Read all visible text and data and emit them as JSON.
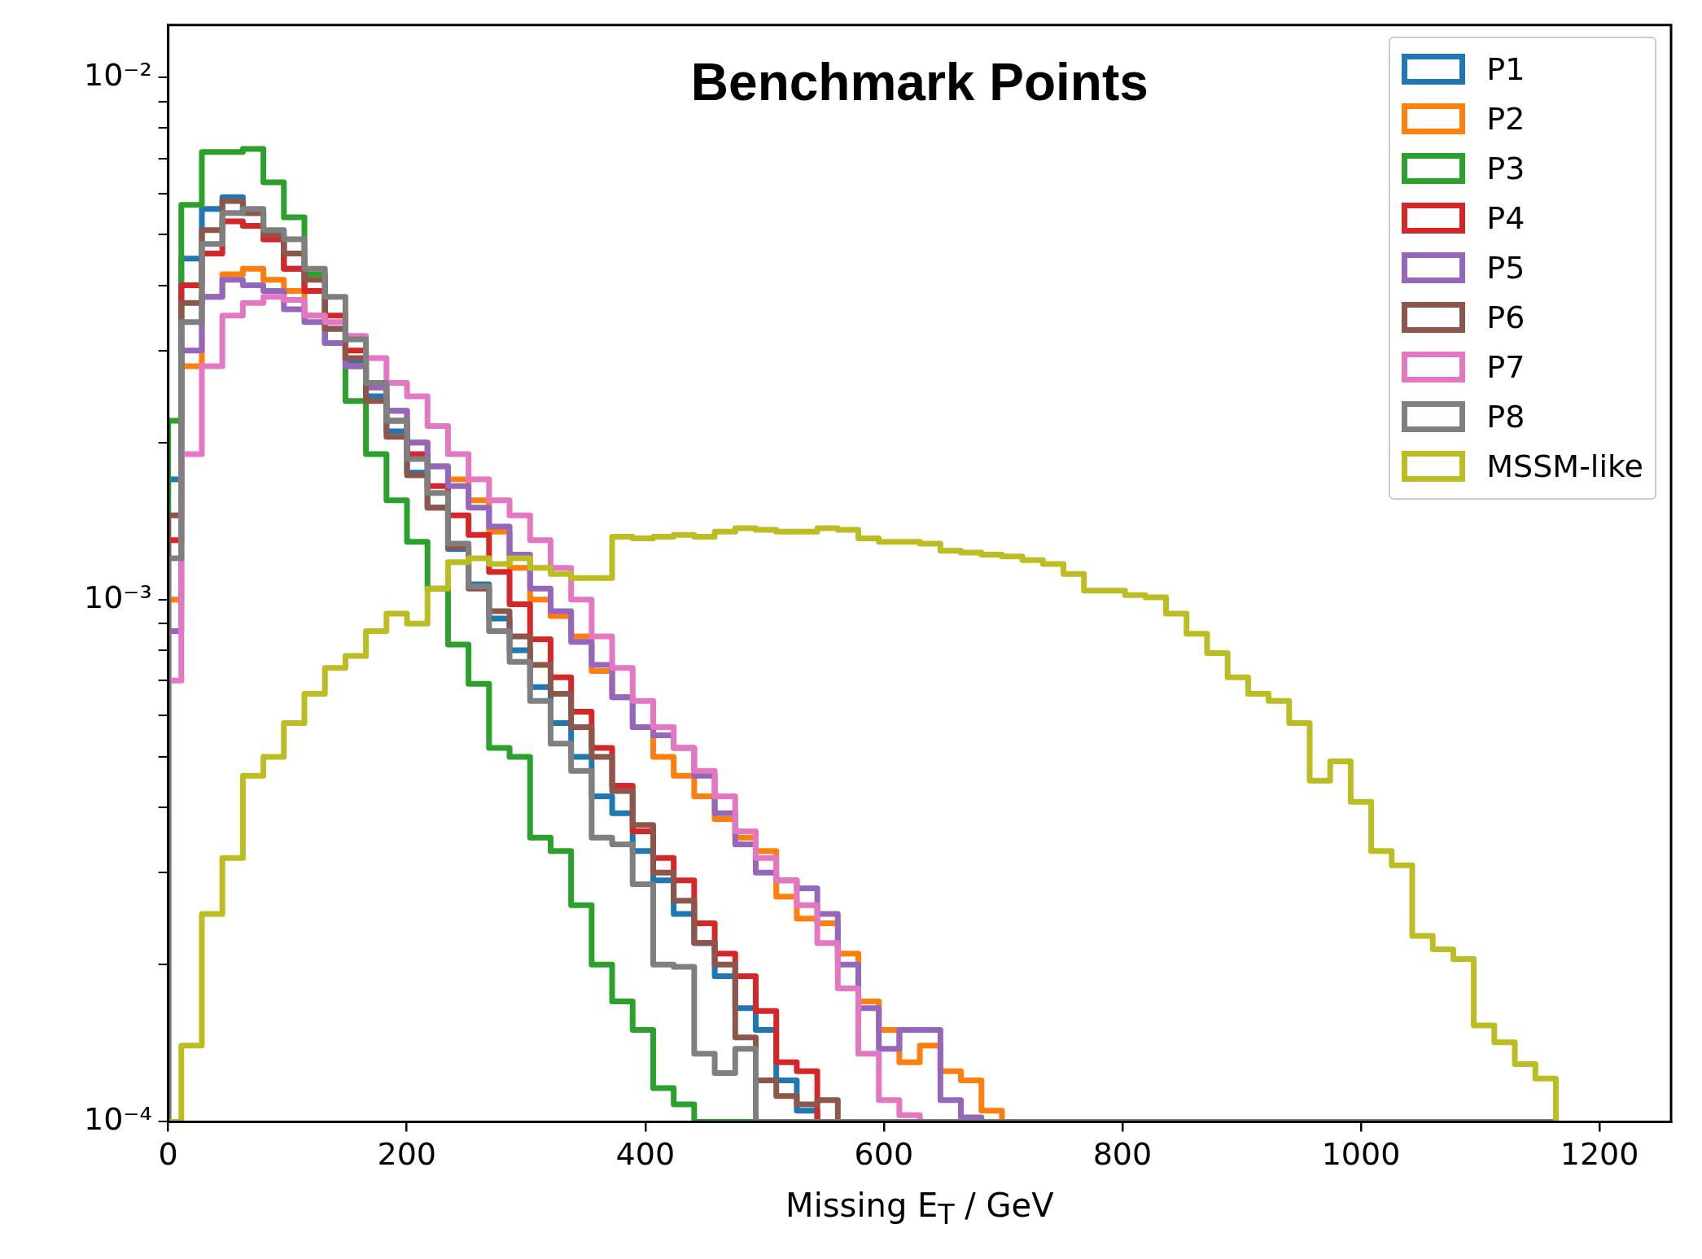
{
  "chart_data": {
    "type": "histogram",
    "title": "Benchmark Points",
    "xlabel": "Missing E$_{T}$ / GeV",
    "bins": [
      0,
      11,
      28.2,
      45.4,
      62.6,
      79.8,
      97,
      114.2,
      131.4,
      148.6,
      165.8,
      183,
      200.2,
      217.4,
      234.6,
      251.8,
      269,
      286.2,
      303.4,
      320.6,
      337.8,
      355,
      372.2,
      389.4,
      406.6,
      423.8,
      441,
      458.2,
      475.4,
      492.6,
      509.8,
      527,
      544.2,
      561.4,
      578.6,
      595.8,
      613,
      630.2,
      647.4,
      664.6,
      681.8,
      699,
      716.2,
      733.4,
      750.6,
      767.8,
      785,
      802.2,
      819.4,
      836.6,
      853.8,
      871,
      888.2,
      905.4,
      922.6,
      939.8,
      957,
      974.2,
      991.4,
      1008.6,
      1025.8,
      1043,
      1060.2,
      1077.4,
      1094.6,
      1111.8,
      1129,
      1146.2,
      1163.4
    ],
    "series": [
      {
        "name": "P1",
        "color": "#1f77b4",
        "values": [
          0.0017,
          0.0045,
          0.0056,
          0.0059,
          0.0055,
          0.0049,
          0.0043,
          0.0039,
          0.0033,
          0.00285,
          0.00245,
          0.0021,
          0.00175,
          0.0015,
          0.00125,
          0.00107,
          0.00092,
          0.0008,
          0.00068,
          0.00058,
          0.0005,
          0.00042,
          0.00039,
          0.00033,
          0.00029,
          0.00025,
          0.00022,
          0.00019,
          0.000165,
          0.00015,
          0.00012,
          0.000105,
          null,
          null,
          null,
          null,
          null,
          null,
          null,
          null,
          null,
          null,
          null,
          null,
          null,
          null,
          null,
          null,
          null,
          null,
          null,
          null,
          null,
          null,
          null,
          null,
          null,
          null,
          null,
          null,
          null,
          null,
          null,
          null,
          null,
          null,
          null,
          null
        ]
      },
      {
        "name": "P2",
        "color": "#ff7f0e",
        "values": [
          0.001,
          0.0028,
          0.0038,
          0.0042,
          0.0043,
          0.0041,
          0.0039,
          0.0035,
          0.0031,
          0.0028,
          0.00255,
          0.0023,
          0.002,
          0.0018,
          0.0017,
          0.00155,
          0.00135,
          0.00115,
          0.001,
          0.00093,
          0.00085,
          0.00073,
          0.00065,
          0.00057,
          0.0005,
          0.00046,
          0.00042,
          0.00038,
          0.00035,
          0.00033,
          0.00027,
          0.000245,
          0.00024,
          0.00021,
          0.00017,
          0.00015,
          0.00013,
          0.00014,
          0.000125,
          0.00012,
          0.000105,
          null,
          null,
          null,
          null,
          null,
          null,
          null,
          null,
          null,
          null,
          null,
          null,
          null,
          null,
          null,
          null,
          null,
          null,
          null,
          null,
          null,
          null,
          null,
          null,
          null,
          null,
          null
        ]
      },
      {
        "name": "P3",
        "color": "#2ca02c",
        "values": [
          0.0022,
          0.0057,
          0.0072,
          0.0072,
          0.0073,
          0.0063,
          0.0054,
          0.0042,
          0.0031,
          0.0024,
          0.0019,
          0.00155,
          0.00129,
          0.00105,
          0.00082,
          0.00069,
          0.00052,
          0.0005,
          0.00035,
          0.00033,
          0.00026,
          0.0002,
          0.00017,
          0.00015,
          0.000116,
          0.000108,
          null,
          null,
          null,
          null,
          null,
          null,
          null,
          null,
          null,
          null,
          null,
          null,
          null,
          null,
          null,
          null,
          null,
          null,
          null,
          null,
          null,
          null,
          null,
          null,
          null,
          null,
          null,
          null,
          null,
          null,
          null,
          null,
          null,
          null,
          null,
          null,
          null,
          null,
          null,
          null,
          null,
          null
        ]
      },
      {
        "name": "P4",
        "color": "#d62728",
        "values": [
          0.0013,
          0.004,
          0.0046,
          0.0053,
          0.0052,
          0.0049,
          0.0043,
          0.0039,
          0.0035,
          0.003,
          0.0026,
          0.0022,
          0.0019,
          0.00165,
          0.00145,
          0.00133,
          0.00113,
          0.00098,
          0.00084,
          0.00071,
          0.00061,
          0.00052,
          0.00044,
          0.00036,
          0.00032,
          0.00029,
          0.00024,
          0.00021,
          0.00019,
          0.000163,
          0.00013,
          0.000125,
          null,
          null,
          null,
          null,
          null,
          null,
          null,
          null,
          null,
          null,
          null,
          null,
          null,
          null,
          null,
          null,
          null,
          null,
          null,
          null,
          null,
          null,
          null,
          null,
          null,
          null,
          null,
          null,
          null,
          null,
          null,
          null,
          null,
          null,
          null,
          null
        ]
      },
      {
        "name": "P5",
        "color": "#9467bd",
        "values": [
          0.00087,
          0.003,
          0.0038,
          0.0041,
          0.004,
          0.0039,
          0.0036,
          0.0034,
          0.0031,
          0.0028,
          0.00255,
          0.0023,
          0.002,
          0.0018,
          0.00165,
          0.0015,
          0.00138,
          0.00122,
          0.00105,
          0.00095,
          0.00083,
          0.00075,
          0.00065,
          0.00057,
          0.00055,
          0.00052,
          0.00046,
          0.00039,
          0.00034,
          0.0003,
          0.00029,
          0.00028,
          0.00025,
          0.0002,
          0.000165,
          0.000138,
          0.00015,
          0.00015,
          0.00011,
          0.000102,
          null,
          null,
          null,
          null,
          null,
          null,
          null,
          null,
          null,
          null,
          null,
          null,
          null,
          null,
          null,
          null,
          null,
          null,
          null,
          null,
          null,
          null,
          null,
          null,
          null,
          null,
          null,
          null
        ]
      },
      {
        "name": "P6",
        "color": "#8c564b",
        "values": [
          0.00145,
          0.0037,
          0.0051,
          0.0058,
          0.0055,
          0.005,
          0.0046,
          0.0041,
          0.0033,
          0.0029,
          0.0024,
          0.00205,
          0.00173,
          0.0015,
          0.00126,
          0.00105,
          0.00095,
          0.00085,
          0.00075,
          0.00066,
          0.00057,
          0.0005,
          0.00043,
          0.00037,
          0.0003,
          0.000265,
          0.00022,
          0.0002,
          0.000145,
          0.00012,
          0.000112,
          0.000108,
          0.00011,
          null,
          null,
          null,
          null,
          null,
          null,
          null,
          null,
          null,
          null,
          null,
          null,
          null,
          null,
          null,
          null,
          null,
          null,
          null,
          null,
          null,
          null,
          null,
          null,
          null,
          null,
          null,
          null,
          null,
          null,
          null,
          null,
          null,
          null,
          null
        ]
      },
      {
        "name": "P7",
        "color": "#e377c2",
        "values": [
          0.0007,
          0.0019,
          0.0028,
          0.0035,
          0.0037,
          0.0038,
          0.00375,
          0.0035,
          0.0034,
          0.0032,
          0.0029,
          0.0026,
          0.00245,
          0.00215,
          0.0019,
          0.0017,
          0.00155,
          0.00145,
          0.0013,
          0.00115,
          0.001,
          0.00085,
          0.00074,
          0.00064,
          0.00057,
          0.00052,
          0.00047,
          0.00042,
          0.00036,
          0.00032,
          0.00029,
          0.00026,
          0.00022,
          0.00018,
          0.000135,
          0.00011,
          0.000103,
          null,
          null,
          null,
          null,
          null,
          null,
          null,
          null,
          null,
          null,
          null,
          null,
          null,
          null,
          null,
          null,
          null,
          null,
          null,
          null,
          null,
          null,
          null,
          null,
          null,
          null,
          null,
          null,
          null,
          null,
          null
        ]
      },
      {
        "name": "P8",
        "color": "#7f7f7f",
        "values": [
          0.0012,
          0.0034,
          0.0048,
          0.0055,
          0.0056,
          0.0051,
          0.0049,
          0.0043,
          0.0038,
          0.00315,
          0.0026,
          0.0022,
          0.00186,
          0.0016,
          0.00128,
          0.00106,
          0.00087,
          0.00076,
          0.00064,
          0.00053,
          0.00047,
          0.00035,
          0.00034,
          0.000285,
          0.0002,
          0.000198,
          0.000135,
          0.000124,
          0.000138,
          null,
          null,
          null,
          null,
          null,
          null,
          null,
          null,
          null,
          null,
          null,
          null,
          null,
          null,
          null,
          null,
          null,
          null,
          null,
          null,
          null,
          null,
          null,
          null,
          null,
          null,
          null,
          null,
          null,
          null,
          null,
          null,
          null,
          null,
          null,
          null,
          null,
          null,
          null
        ]
      },
      {
        "name": "MSSM-like",
        "color": "#bcbd22",
        "values": [
          null,
          0.00014,
          0.00025,
          0.00032,
          0.00046,
          0.0005,
          0.00058,
          0.00066,
          0.00074,
          0.00078,
          0.00087,
          0.00094,
          0.0009,
          0.00105,
          0.00118,
          0.0012,
          0.00117,
          0.0012,
          0.00115,
          0.00112,
          0.0011,
          0.0011,
          0.00132,
          0.00131,
          0.00132,
          0.00133,
          0.00132,
          0.00135,
          0.00137,
          0.00136,
          0.00135,
          0.00135,
          0.00137,
          0.00136,
          0.00131,
          0.00129,
          0.00129,
          0.00128,
          0.00124,
          0.00123,
          0.00122,
          0.00121,
          0.00119,
          0.00117,
          0.00112,
          0.00104,
          0.00104,
          0.00102,
          0.00101,
          0.00094,
          0.00086,
          0.00079,
          0.00071,
          0.00066,
          0.00064,
          0.00058,
          0.00045,
          0.00049,
          0.00041,
          0.00033,
          0.00031,
          0.000227,
          0.000214,
          0.000205,
          0.000153,
          0.000142,
          0.000129,
          0.000121
        ]
      }
    ],
    "xlim": [
      0,
      1260
    ],
    "xticks": [
      0,
      200,
      400,
      600,
      800,
      1000,
      1200
    ],
    "ylim": [
      0.0001,
      0.0126
    ],
    "yticks": [
      {
        "value": 0.0001,
        "label": "10⁻⁴"
      },
      {
        "value": 0.0002,
        "label": null
      },
      {
        "value": 0.0003,
        "label": null
      },
      {
        "value": 0.0004,
        "label": null
      },
      {
        "value": 0.0005,
        "label": null
      },
      {
        "value": 0.0006,
        "label": null
      },
      {
        "value": 0.0007,
        "label": null
      },
      {
        "value": 0.0008,
        "label": null
      },
      {
        "value": 0.0009,
        "label": null
      },
      {
        "value": 0.001,
        "label": "10⁻³"
      },
      {
        "value": 0.002,
        "label": null
      },
      {
        "value": 0.003,
        "label": null
      },
      {
        "value": 0.004,
        "label": null
      },
      {
        "value": 0.005,
        "label": null
      },
      {
        "value": 0.006,
        "label": null
      },
      {
        "value": 0.007,
        "label": null
      },
      {
        "value": 0.008,
        "label": null
      },
      {
        "value": 0.009,
        "label": null
      },
      {
        "value": 0.01,
        "label": "10⁻²"
      }
    ],
    "log": "y",
    "legend": "top right"
  }
}
